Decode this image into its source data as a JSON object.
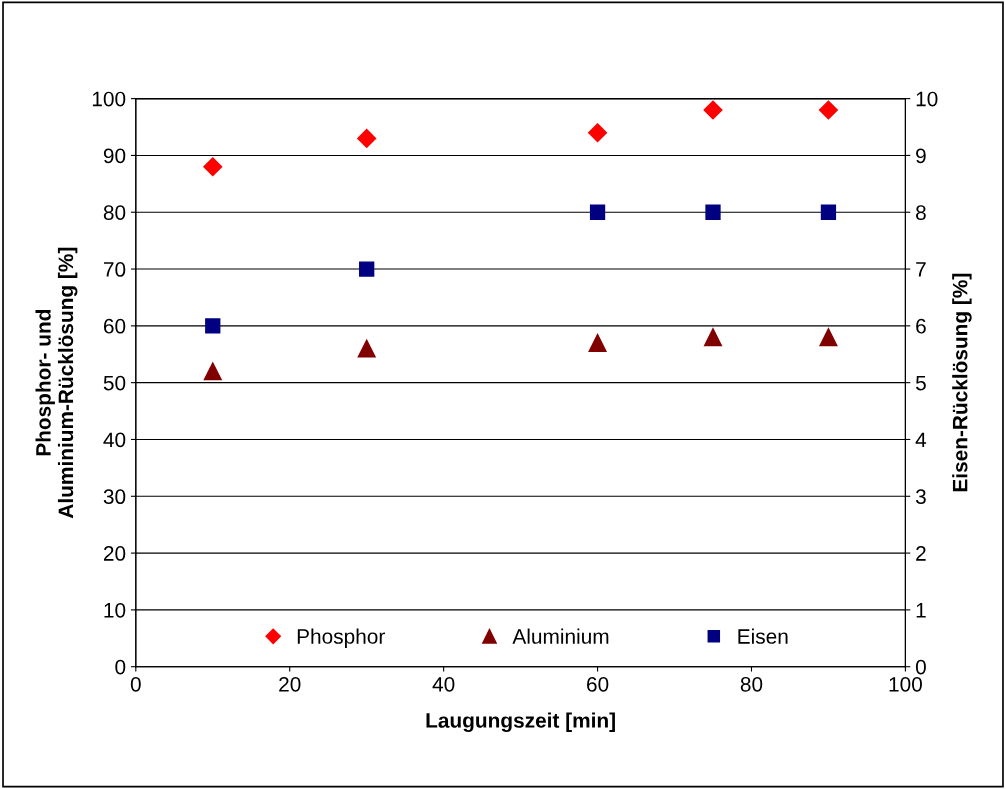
{
  "chart_data": {
    "type": "scatter",
    "xlabel": "Laugungszeit [min]",
    "ylabel": "Phosphor- und\nAluminium-Rücklösung [%]",
    "y2label": "Eisen-Rücklösung [%]",
    "x": [
      10,
      30,
      60,
      75,
      90
    ],
    "series": [
      {
        "name": "Phosphor",
        "color": "#ff0000",
        "marker": "diamond",
        "values": [
          88,
          93,
          94,
          98,
          98
        ]
      },
      {
        "name": "Aluminium",
        "color": "#800000",
        "marker": "triangle",
        "values": [
          52,
          56,
          57,
          58,
          58
        ]
      },
      {
        "name": "Eisen",
        "color": "#000080",
        "marker": "square",
        "axis": "y2",
        "values": [
          6,
          7,
          8,
          8,
          8
        ]
      }
    ],
    "xlim": [
      0,
      100
    ],
    "xticks": [
      0,
      20,
      40,
      60,
      80,
      100
    ],
    "ylim": [
      0,
      100
    ],
    "yticks": [
      0,
      10,
      20,
      30,
      40,
      50,
      60,
      70,
      80,
      90,
      100
    ],
    "y2lim": [
      0,
      10
    ],
    "y2ticks": [
      0,
      1,
      2,
      3,
      4,
      5,
      6,
      7,
      8,
      9,
      10
    ],
    "grid": "y",
    "legend": "bottom"
  }
}
